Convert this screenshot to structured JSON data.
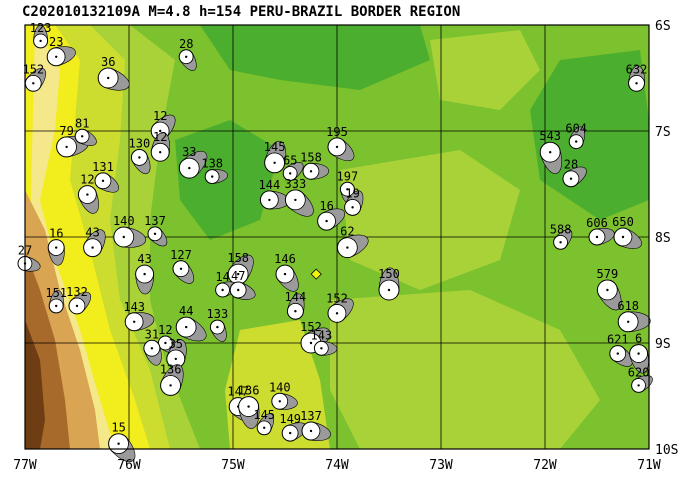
{
  "title": "C202010132109A M=4.8 h=154 PERU-BRAZIL BORDER REGION",
  "colors": {
    "dark_green": "#4cae2e",
    "mid_green": "#7cc22e",
    "light_green": "#a9d238",
    "yellow_green": "#ccdd30",
    "yellow": "#f2ed1c",
    "pale_yellow": "#f5e88a",
    "tan": "#d9a552",
    "brown": "#a86a2b",
    "dark_brown": "#6e3d14",
    "grid": "#000000",
    "beachball_fill": "#9a9a9a",
    "event_marker": "#f5f50a"
  },
  "axes": {
    "lon_labels": [
      "77W",
      "76W",
      "75W",
      "74W",
      "73W",
      "72W",
      "71W"
    ],
    "lat_labels": [
      "6S",
      "7S",
      "8S",
      "9S",
      "10S"
    ]
  },
  "events": [
    {
      "label": "123",
      "lon": -76.85,
      "lat": -6.15
    },
    {
      "label": "152",
      "lon": -76.92,
      "lat": -6.55
    },
    {
      "label": "23",
      "lon": -76.7,
      "lat": -6.3
    },
    {
      "label": "36",
      "lon": -76.2,
      "lat": -6.5
    },
    {
      "label": "28",
      "lon": -75.45,
      "lat": -6.3
    },
    {
      "label": "632",
      "lon": -71.12,
      "lat": -6.55
    },
    {
      "label": "12",
      "lon": -75.7,
      "lat": -7.0
    },
    {
      "label": "79",
      "lon": -76.6,
      "lat": -7.15
    },
    {
      "label": "81",
      "lon": -76.45,
      "lat": -7.05
    },
    {
      "label": "130",
      "lon": -75.9,
      "lat": -7.25
    },
    {
      "label": "12",
      "lon": -75.7,
      "lat": -7.2
    },
    {
      "label": "33",
      "lon": -75.42,
      "lat": -7.35
    },
    {
      "label": "138",
      "lon": -75.2,
      "lat": -7.43
    },
    {
      "label": "131",
      "lon": -76.25,
      "lat": -7.47
    },
    {
      "label": "12",
      "lon": -76.4,
      "lat": -7.6
    },
    {
      "label": "145",
      "lon": -74.6,
      "lat": -7.3
    },
    {
      "label": "65",
      "lon": -74.45,
      "lat": -7.4
    },
    {
      "label": "158",
      "lon": -74.25,
      "lat": -7.38
    },
    {
      "label": "195",
      "lon": -74.0,
      "lat": -7.15
    },
    {
      "label": "543",
      "lon": -71.95,
      "lat": -7.2
    },
    {
      "label": "604",
      "lon": -71.7,
      "lat": -7.1
    },
    {
      "label": "28",
      "lon": -71.75,
      "lat": -7.45
    },
    {
      "label": "144",
      "lon": -74.65,
      "lat": -7.65
    },
    {
      "label": "333",
      "lon": -74.4,
      "lat": -7.65
    },
    {
      "label": "197",
      "lon": -73.9,
      "lat": -7.55
    },
    {
      "label": "19",
      "lon": -73.85,
      "lat": -7.72
    },
    {
      "label": "16",
      "lon": -74.1,
      "lat": -7.85
    },
    {
      "label": "140",
      "lon": -76.05,
      "lat": -8.0
    },
    {
      "label": "137",
      "lon": -75.75,
      "lat": -7.97
    },
    {
      "label": "16",
      "lon": -76.7,
      "lat": -8.1
    },
    {
      "label": "43",
      "lon": -76.35,
      "lat": -8.1
    },
    {
      "label": "62",
      "lon": -73.9,
      "lat": -8.1
    },
    {
      "label": "27",
      "lon": -77.0,
      "lat": -8.25
    },
    {
      "label": "127",
      "lon": -75.5,
      "lat": -8.3
    },
    {
      "label": "43",
      "lon": -75.85,
      "lat": -8.35
    },
    {
      "label": "158",
      "lon": -74.95,
      "lat": -8.35
    },
    {
      "label": "14",
      "lon": -75.1,
      "lat": -8.5
    },
    {
      "label": "47",
      "lon": -74.95,
      "lat": -8.5
    },
    {
      "label": "146",
      "lon": -74.5,
      "lat": -8.35
    },
    {
      "label": "150",
      "lon": -73.5,
      "lat": -8.5
    },
    {
      "label": "588",
      "lon": -71.85,
      "lat": -8.05
    },
    {
      "label": "606",
      "lon": -71.5,
      "lat": -8.0
    },
    {
      "label": "650",
      "lon": -71.25,
      "lat": -8.0
    },
    {
      "label": "579",
      "lon": -71.4,
      "lat": -8.5
    },
    {
      "label": "151",
      "lon": -76.7,
      "lat": -8.65
    },
    {
      "label": "132",
      "lon": -76.5,
      "lat": -8.65
    },
    {
      "label": "143",
      "lon": -75.95,
      "lat": -8.8
    },
    {
      "label": "44",
      "lon": -75.45,
      "lat": -8.85
    },
    {
      "label": "133",
      "lon": -75.15,
      "lat": -8.85
    },
    {
      "label": "144",
      "lon": -74.4,
      "lat": -8.7
    },
    {
      "label": "152",
      "lon": -74.0,
      "lat": -8.72
    },
    {
      "label": "618",
      "lon": -71.2,
      "lat": -8.8
    },
    {
      "label": "12",
      "lon": -75.65,
      "lat": -9.0
    },
    {
      "label": "31",
      "lon": -75.78,
      "lat": -9.05
    },
    {
      "label": "35",
      "lon": -75.55,
      "lat": -9.15
    },
    {
      "label": "152",
      "lon": -74.25,
      "lat": -9.0
    },
    {
      "label": "143",
      "lon": -74.15,
      "lat": -9.05
    },
    {
      "label": "621",
      "lon": -71.3,
      "lat": -9.1
    },
    {
      "label": "6",
      "lon": -71.1,
      "lat": -9.1
    },
    {
      "label": "136",
      "lon": -75.6,
      "lat": -9.4
    },
    {
      "label": "620",
      "lon": -71.1,
      "lat": -9.4
    },
    {
      "label": "140",
      "lon": -74.55,
      "lat": -9.55
    },
    {
      "label": "147",
      "lon": -74.95,
      "lat": -9.6
    },
    {
      "label": "136",
      "lon": -74.85,
      "lat": -9.6
    },
    {
      "label": "145",
      "lon": -74.7,
      "lat": -9.8
    },
    {
      "label": "149",
      "lon": -74.45,
      "lat": -9.85
    },
    {
      "label": "137",
      "lon": -74.25,
      "lat": -9.83
    },
    {
      "label": "15",
      "lon": -76.1,
      "lat": -9.95
    }
  ]
}
